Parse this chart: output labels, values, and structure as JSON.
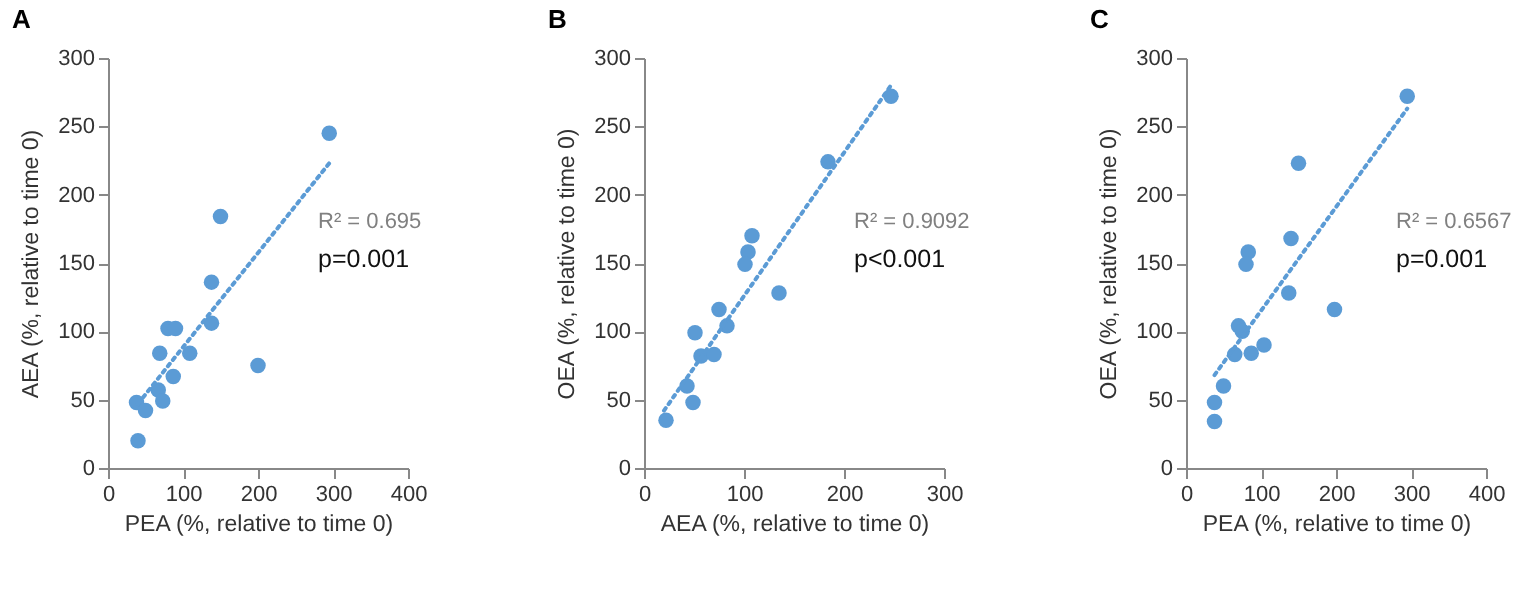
{
  "chart_data": [
    {
      "type": "scatter",
      "title": "A",
      "xlabel": "PEA (%, relative to time 0)",
      "ylabel": "AEA  (%, relative to time 0)",
      "xlim": [
        0,
        400
      ],
      "xticks": [
        0,
        100,
        200,
        300,
        400
      ],
      "ylim": [
        0,
        300
      ],
      "yticks": [
        0,
        50,
        100,
        150,
        200,
        250,
        300
      ],
      "annotations": [
        "R² = 0.695",
        "p=0.001"
      ],
      "series": [
        {
          "type": "scatter",
          "marker": "circle",
          "color": "#5b9bd5",
          "x": [
            295,
            150,
            138,
            138,
            109,
            200,
            69,
            80,
            90,
            87,
            67,
            73,
            38,
            50,
            40
          ],
          "values": [
            245,
            184,
            136,
            106,
            84,
            75,
            84,
            102,
            102,
            67,
            57,
            49,
            48,
            42,
            20
          ]
        },
        {
          "type": "line",
          "line_style": "dotted",
          "color": "#5b9bd5",
          "x": [
            40,
            295
          ],
          "values": [
            47,
            223
          ]
        }
      ]
    },
    {
      "type": "scatter",
      "title": "B",
      "xlabel": "AEA (%, relative to time 0)",
      "ylabel": "OEA  (%, relative to time 0)",
      "xlim": [
        0,
        300
      ],
      "xticks": [
        0,
        100,
        200,
        300
      ],
      "ylim": [
        0,
        300
      ],
      "yticks": [
        0,
        50,
        100,
        150,
        200,
        250,
        300
      ],
      "annotations": [
        "R² = 0.9092",
        "p<0.001"
      ],
      "series": [
        {
          "type": "scatter",
          "marker": "circle",
          "color": "#5b9bd5",
          "x": [
            247,
            184,
            108,
            104,
            101,
            135,
            75,
            83,
            51,
            57,
            70,
            43,
            49,
            22
          ],
          "values": [
            272,
            224,
            170,
            158,
            149,
            128,
            116,
            104,
            99,
            82,
            83,
            60,
            48,
            35
          ]
        },
        {
          "type": "line",
          "line_style": "dotted",
          "color": "#5b9bd5",
          "x": [
            20,
            247
          ],
          "values": [
            42,
            280
          ]
        }
      ]
    },
    {
      "type": "scatter",
      "title": "C",
      "xlabel": "PEA (%, relative to time 0)",
      "ylabel": "OEA  (%, relative to time 0)",
      "xlim": [
        0,
        400
      ],
      "xticks": [
        0,
        100,
        200,
        300,
        400
      ],
      "ylim": [
        0,
        300
      ],
      "yticks": [
        0,
        50,
        100,
        150,
        200,
        250,
        300
      ],
      "annotations": [
        "R² = 0.6567",
        "p=0.001"
      ],
      "series": [
        {
          "type": "scatter",
          "marker": "circle",
          "color": "#5b9bd5",
          "x": [
            295,
            150,
            140,
            137,
            198,
            83,
            80,
            70,
            75,
            65,
            87,
            104,
            50,
            38,
            38
          ],
          "values": [
            272,
            223,
            168,
            128,
            116,
            158,
            149,
            104,
            100,
            83,
            84,
            90,
            60,
            48,
            34
          ]
        },
        {
          "type": "line",
          "line_style": "dotted",
          "color": "#5b9bd5",
          "x": [
            38,
            295
          ],
          "values": [
            68,
            263
          ]
        }
      ]
    }
  ]
}
